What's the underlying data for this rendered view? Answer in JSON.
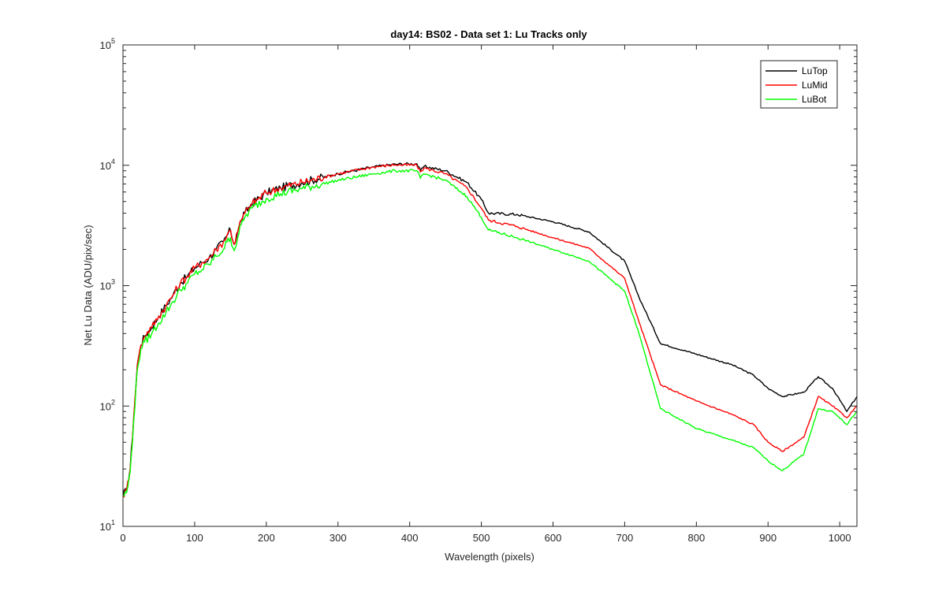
{
  "chart_data": {
    "type": "line",
    "title": "day14: BS02 - Data set 1: Lu Tracks only",
    "xlabel": "Wavelength (pixels)",
    "ylabel": "Net Lu Data (ADU/pix/sec)",
    "xlim": [
      0,
      1024
    ],
    "ylim": [
      10,
      100000
    ],
    "yscale": "log",
    "grid": false,
    "legend_location": "top-right",
    "xticks": [
      0,
      100,
      200,
      300,
      400,
      500,
      600,
      700,
      800,
      900,
      1000
    ],
    "xtick_labels": [
      "0",
      "100",
      "200",
      "300",
      "400",
      "500",
      "600",
      "700",
      "800",
      "900",
      "1000"
    ],
    "yticks": [
      {
        "value": 10,
        "base": "10",
        "exp": "1"
      },
      {
        "value": 100,
        "base": "10",
        "exp": "2"
      },
      {
        "value": 1000,
        "base": "10",
        "exp": "3"
      },
      {
        "value": 10000,
        "base": "10",
        "exp": "4"
      },
      {
        "value": 100000,
        "base": "10",
        "exp": "5"
      }
    ],
    "series": [
      {
        "name": "LuTop",
        "color": "#000000",
        "x": [
          0,
          5,
          10,
          15,
          20,
          25,
          30,
          40,
          50,
          60,
          70,
          80,
          90,
          100,
          110,
          120,
          130,
          140,
          145,
          150,
          155,
          160,
          165,
          170,
          180,
          200,
          220,
          250,
          300,
          350,
          380,
          410,
          415,
          420,
          450,
          480,
          500,
          510,
          550,
          600,
          650,
          700,
          720,
          750,
          800,
          850,
          880,
          900,
          920,
          950,
          970,
          990,
          1010,
          1024
        ],
        "y": [
          18,
          20,
          30,
          80,
          220,
          320,
          380,
          450,
          560,
          680,
          840,
          1050,
          1200,
          1400,
          1550,
          1700,
          2000,
          2300,
          2600,
          2900,
          2200,
          2800,
          3500,
          4000,
          4800,
          5900,
          6500,
          7200,
          8500,
          9700,
          10200,
          10300,
          9000,
          9800,
          9000,
          7200,
          5200,
          4000,
          3900,
          3400,
          2800,
          1600,
          800,
          330,
          270,
          220,
          180,
          140,
          120,
          130,
          175,
          140,
          90,
          120
        ]
      },
      {
        "name": "LuMid",
        "color": "#ff0000",
        "x": [
          0,
          5,
          10,
          15,
          20,
          25,
          30,
          40,
          50,
          60,
          70,
          80,
          90,
          100,
          110,
          120,
          130,
          140,
          145,
          150,
          155,
          160,
          165,
          170,
          180,
          200,
          220,
          250,
          300,
          350,
          380,
          410,
          415,
          420,
          450,
          480,
          500,
          510,
          550,
          600,
          650,
          700,
          720,
          750,
          800,
          850,
          880,
          900,
          920,
          950,
          970,
          990,
          1010,
          1024
        ],
        "y": [
          18,
          20,
          30,
          80,
          220,
          320,
          380,
          450,
          560,
          680,
          840,
          1050,
          1200,
          1400,
          1550,
          1700,
          2000,
          2300,
          2600,
          2900,
          2200,
          2800,
          3500,
          4000,
          4800,
          5900,
          6500,
          7200,
          8500,
          9700,
          10100,
          10000,
          8800,
          9500,
          8500,
          6500,
          4400,
          3500,
          3100,
          2500,
          2050,
          1150,
          500,
          150,
          110,
          85,
          70,
          50,
          42,
          55,
          120,
          100,
          80,
          100
        ]
      },
      {
        "name": "LuBot",
        "color": "#00ff00",
        "x": [
          0,
          5,
          10,
          15,
          20,
          25,
          30,
          40,
          50,
          60,
          70,
          80,
          90,
          100,
          110,
          120,
          130,
          140,
          145,
          150,
          155,
          160,
          165,
          170,
          180,
          200,
          220,
          250,
          300,
          350,
          380,
          410,
          415,
          420,
          450,
          480,
          500,
          510,
          550,
          600,
          650,
          700,
          720,
          750,
          800,
          850,
          880,
          900,
          920,
          950,
          970,
          990,
          1010,
          1024
        ],
        "y": [
          18,
          19,
          28,
          75,
          200,
          300,
          340,
          400,
          490,
          600,
          740,
          920,
          1050,
          1250,
          1350,
          1500,
          1750,
          2000,
          2300,
          2500,
          1950,
          2500,
          3200,
          3700,
          4400,
          5300,
          5800,
          6400,
          7500,
          8500,
          9000,
          9000,
          7800,
          8500,
          7500,
          5500,
          3700,
          2900,
          2500,
          2000,
          1600,
          900,
          400,
          95,
          65,
          52,
          45,
          35,
          29,
          40,
          95,
          90,
          70,
          90
        ]
      }
    ]
  }
}
